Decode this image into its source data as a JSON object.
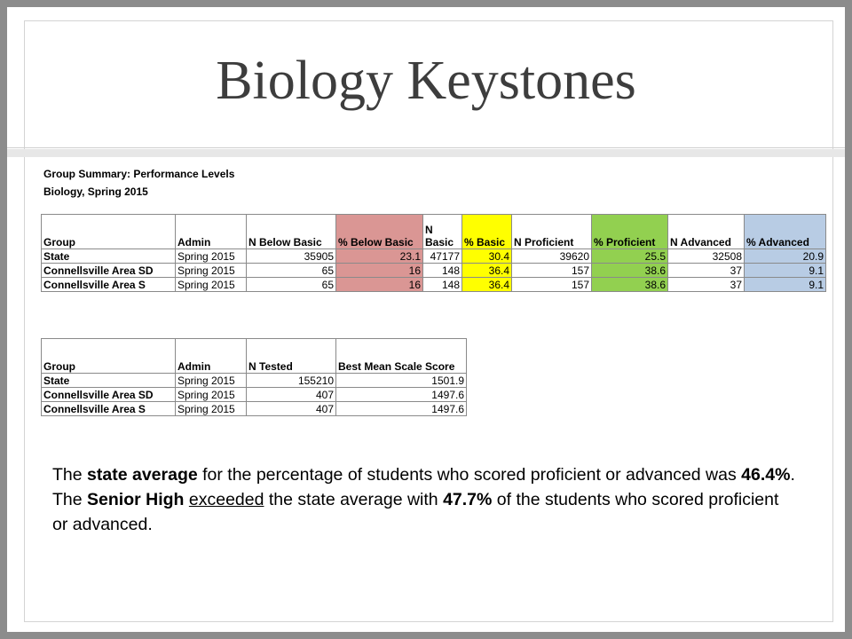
{
  "slide": {
    "title": "Biology Keystones"
  },
  "summary": {
    "caption_line1": "Group Summary: Performance Levels",
    "caption_line2": "Biology, Spring 2015"
  },
  "table1": {
    "headers": [
      "Group",
      "Admin",
      "N Below Basic",
      "% Below Basic",
      "N Basic",
      "% Basic",
      "N Proficient",
      "% Proficient",
      "N Advanced",
      "% Advanced"
    ],
    "header_colors": {
      "below_basic": "#da9694",
      "basic": "#ffff00",
      "proficient": "#92d050",
      "advanced": "#b8cce4"
    },
    "rows": [
      [
        "State",
        "Spring 2015",
        "35905",
        "23.1",
        "47177",
        "30.4",
        "39620",
        "25.5",
        "32508",
        "20.9"
      ],
      [
        "Connellsville Area SD",
        "Spring 2015",
        "65",
        "16",
        "148",
        "36.4",
        "157",
        "38.6",
        "37",
        "9.1"
      ],
      [
        "Connellsville Area S",
        "Spring 2015",
        "65",
        "16",
        "148",
        "36.4",
        "157",
        "38.6",
        "37",
        "9.1"
      ]
    ]
  },
  "table2": {
    "headers": [
      "Group",
      "Admin",
      "N Tested",
      "Best Mean Scale Score"
    ],
    "rows": [
      [
        "State",
        "Spring 2015",
        "155210",
        "1501.9"
      ],
      [
        "Connellsville Area SD",
        "Spring 2015",
        "407",
        "1497.6"
      ],
      [
        "Connellsville Area S",
        "Spring 2015",
        "407",
        "1497.6"
      ]
    ]
  },
  "text": {
    "p1_a": "The ",
    "p1_b": "state average",
    "p1_c": " for the percentage of students who scored proficient or advanced was ",
    "p1_d": "46.4%",
    "p1_e": ".",
    "p2_a": "The ",
    "p2_b": "Senior High",
    "p2_c": " ",
    "p2_d": "exceeded",
    "p2_e": " the state average with ",
    "p2_f": "47.7%",
    "p2_g": " of the students who scored proficient or advanced."
  }
}
